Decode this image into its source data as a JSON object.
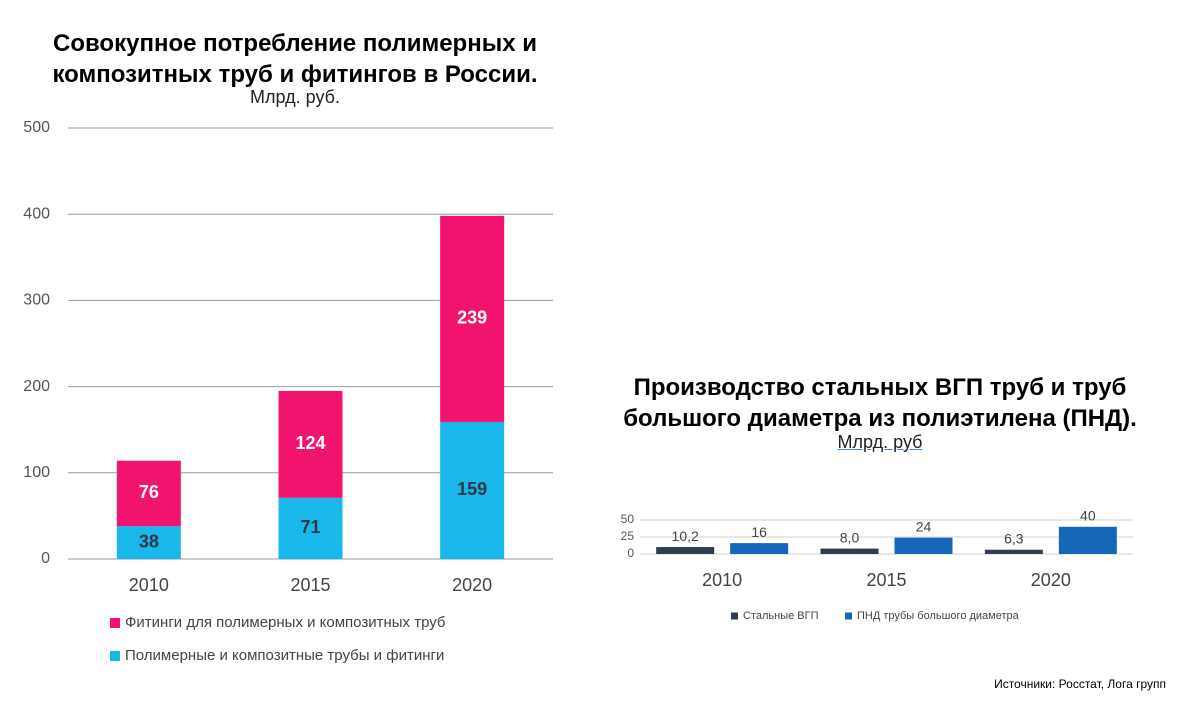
{
  "chart_data": [
    {
      "type": "bar",
      "stacked": true,
      "title": "Совокупное потребление полимерных и композитных труб и фитингов в России.",
      "subtitle": "Млрд. руб.",
      "categories": [
        "2010",
        "2015",
        "2020"
      ],
      "series": [
        {
          "name": "Полимерные и композитные трубы и фитинги",
          "color": "#1ab7ea",
          "values": [
            38,
            71,
            159
          ]
        },
        {
          "name": "Фитинги для полимерных и композитных труб",
          "color": "#f0146e",
          "values": [
            76,
            124,
            239
          ]
        }
      ],
      "ylim": [
        0,
        500
      ],
      "yticks": [
        0,
        100,
        200,
        300,
        400,
        500
      ],
      "grid": true,
      "legend": "bottom"
    },
    {
      "type": "bar",
      "stacked": false,
      "title": "Производство стальных ВГП труб и труб большого диаметра из полиэтилена (ПНД).",
      "subtitle": "Млрд. руб",
      "categories": [
        "2010",
        "2015",
        "2020"
      ],
      "series": [
        {
          "name": "Стальные ВГП",
          "color": "#2e3e50",
          "values": [
            10.2,
            8.0,
            6.3
          ],
          "value_labels": [
            "10,2",
            "8,0",
            "6,3"
          ]
        },
        {
          "name": "ПНД трубы большого диаметра",
          "color": "#1565b8",
          "values": [
            16,
            24,
            40
          ]
        }
      ],
      "ylim": [
        0,
        50
      ],
      "yticks": [
        0,
        25,
        50
      ],
      "grid": true,
      "legend": "bottom"
    }
  ],
  "source": "Источники: Росстат, Лога групп"
}
